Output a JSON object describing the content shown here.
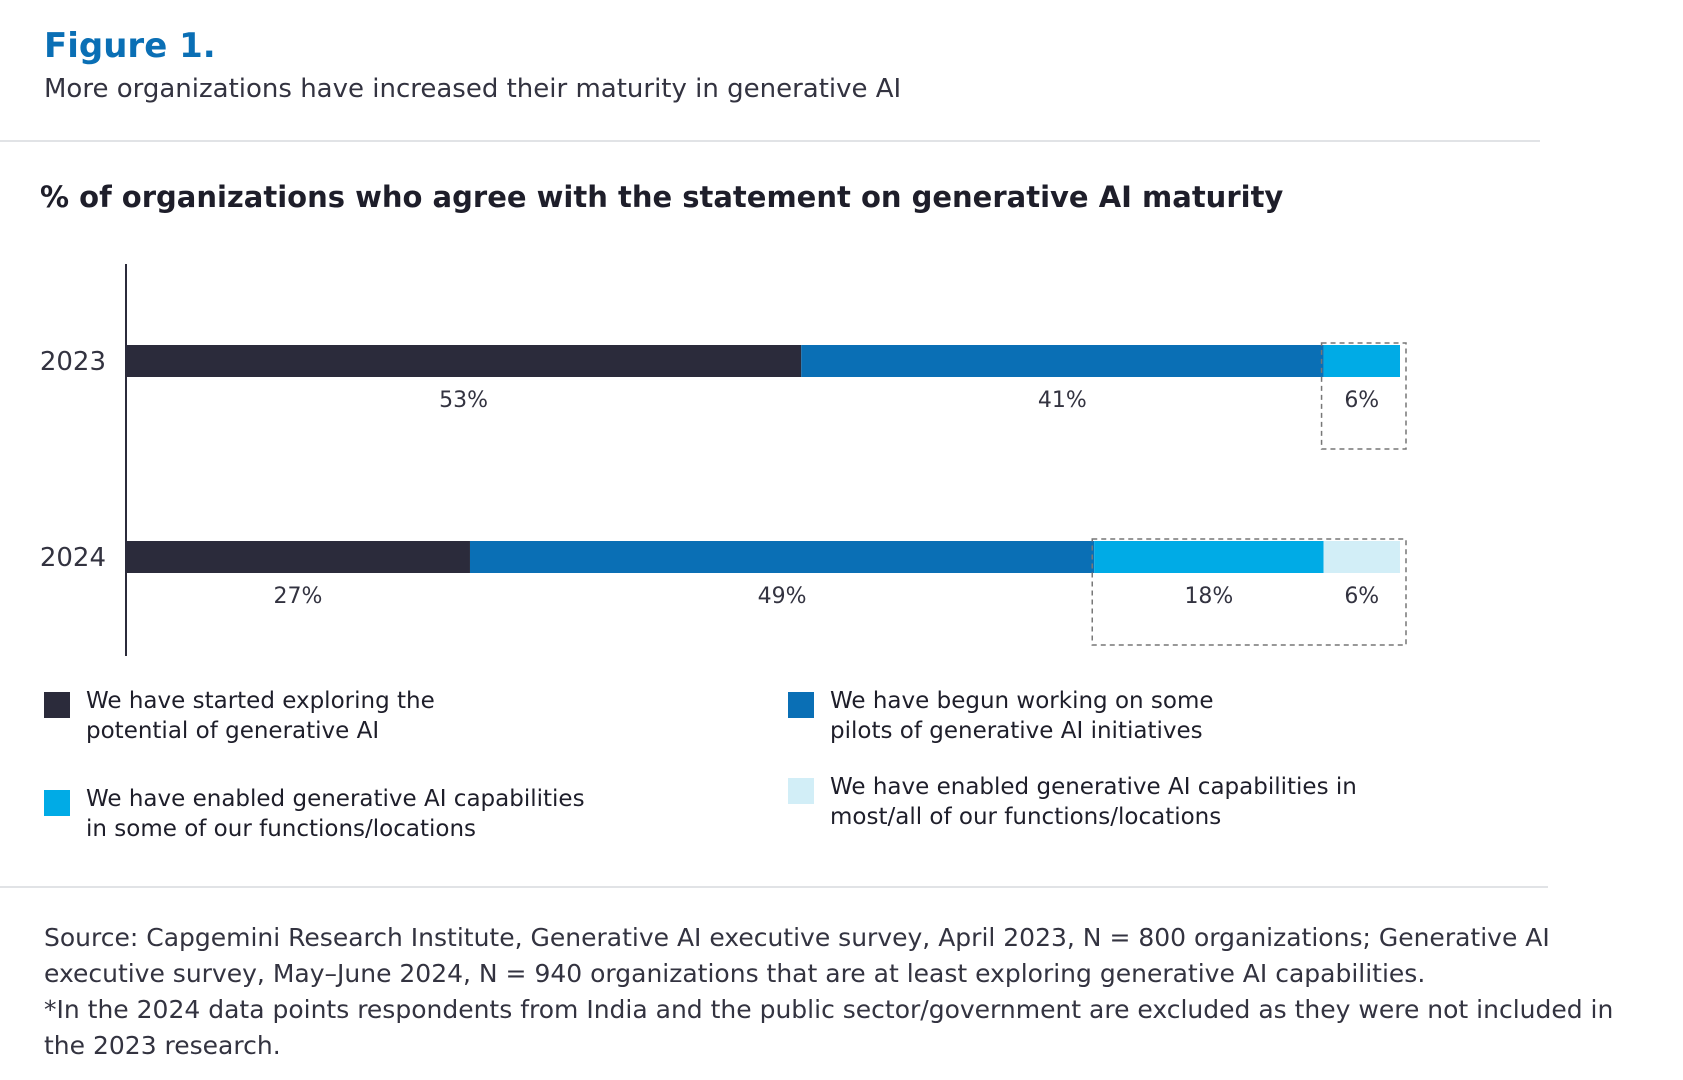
{
  "figure": {
    "title": "Figure 1.",
    "subtitle": "More organizations have increased their maturity in generative AI"
  },
  "chart_data": {
    "type": "bar",
    "orientation": "horizontal",
    "stacked": true,
    "title": "% of organizations who agree with the statement on generative AI maturity",
    "categories": [
      "2023",
      "2024"
    ],
    "series": [
      {
        "name": "We have started exploring the\npotential of generative AI",
        "color": "#2b2b3b",
        "values": [
          53,
          27
        ]
      },
      {
        "name": "We have begun working on some\npilots of generative AI initiatives",
        "color": "#0a6fb5",
        "values": [
          41,
          49
        ]
      },
      {
        "name": "We have enabled generative AI capabilities\nin some of our functions/locations",
        "color": "#00abe6",
        "values": [
          6,
          18
        ]
      },
      {
        "name": "We have enabled generative AI capabilities in\nmost/all of our functions/locations",
        "color": "#d2eef7",
        "values": [
          0,
          6
        ]
      }
    ],
    "data_labels": [
      [
        "53%",
        "41%",
        "6%",
        ""
      ],
      [
        "27%",
        "49%",
        "18%",
        "6%"
      ]
    ],
    "xlim": [
      0,
      100
    ],
    "grid": false,
    "legend_position": "bottom"
  },
  "source": {
    "line1": "Source: Capgemini Research Institute, Generative AI executive survey, April 2023, N = 800 organizations; Generative AI executive survey, May–June 2024, N = 940 organizations that are at least exploring generative AI capabilities.",
    "line2": "*In the 2024 data points respondents from India and the public sector/government are excluded as they were not included in the 2023 research."
  }
}
